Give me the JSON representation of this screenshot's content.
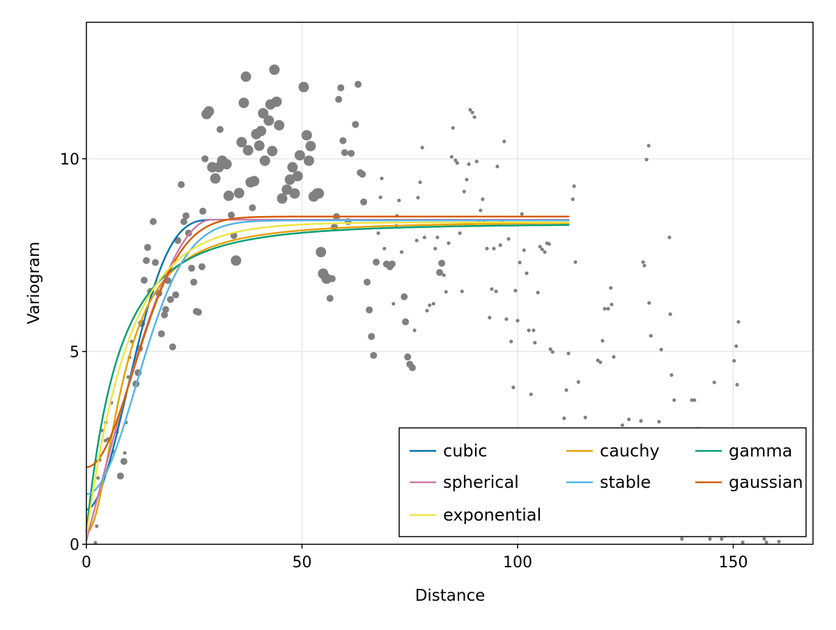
{
  "chart_data": {
    "type": "scatter",
    "title": "",
    "xlabel": "Distance",
    "ylabel": "Variogram",
    "xlim": [
      0,
      168.5
    ],
    "ylim": [
      0,
      13.54
    ],
    "xticks": [
      0,
      50,
      100,
      150
    ],
    "yticks": [
      0,
      5,
      10
    ],
    "xtick_labels": [
      "0",
      "50",
      "100",
      "150"
    ],
    "ytick_labels": [
      "0",
      "5",
      "10"
    ],
    "grid": true,
    "legend_position": "bottom-right",
    "point_color": "#808080",
    "points": [
      [
        2.1,
        0.04,
        1
      ],
      [
        2.4,
        0.47,
        1
      ],
      [
        2.7,
        1.72,
        1
      ],
      [
        3.1,
        2.19,
        1
      ],
      [
        3.7,
        2.95,
        1
      ],
      [
        4.5,
        3.16,
        1
      ],
      [
        4.4,
        2.69,
        1
      ],
      [
        5.0,
        2.73,
        1
      ],
      [
        5.8,
        3.67,
        1
      ],
      [
        6.3,
        2.4,
        1
      ],
      [
        7.1,
        2.91,
        1
      ],
      [
        7.9,
        1.77,
        2
      ],
      [
        8.7,
        2.15,
        2
      ],
      [
        8.9,
        2.37,
        1
      ],
      [
        9.2,
        3.16,
        1
      ],
      [
        9.7,
        4.34,
        1
      ],
      [
        10.5,
        5.26,
        1
      ],
      [
        10.0,
        4.85,
        1
      ],
      [
        11.5,
        4.16,
        2
      ],
      [
        12.0,
        4.45,
        2
      ],
      [
        12.3,
        5.08,
        2
      ],
      [
        12.8,
        5.73,
        2
      ],
      [
        13.4,
        6.85,
        2
      ],
      [
        13.9,
        7.36,
        2
      ],
      [
        14.2,
        7.7,
        2
      ],
      [
        14.9,
        6.56,
        2
      ],
      [
        15.5,
        8.37,
        2
      ],
      [
        16.0,
        7.31,
        2
      ],
      [
        16.8,
        6.51,
        2
      ],
      [
        17.4,
        5.46,
        2
      ],
      [
        18.1,
        5.95,
        2
      ],
      [
        18.4,
        6.09,
        2
      ],
      [
        18.9,
        6.84,
        2
      ],
      [
        19.5,
        6.35,
        2
      ],
      [
        20.0,
        5.12,
        2
      ],
      [
        20.7,
        6.47,
        2
      ],
      [
        21.2,
        7.88,
        2
      ],
      [
        22.0,
        9.33,
        2
      ],
      [
        22.6,
        8.37,
        2
      ],
      [
        23.1,
        8.52,
        2
      ],
      [
        23.7,
        8.07,
        2
      ],
      [
        24.4,
        7.16,
        2
      ],
      [
        24.9,
        6.8,
        2
      ],
      [
        25.5,
        6.04,
        2
      ],
      [
        26.0,
        6.02,
        2
      ],
      [
        26.8,
        7.2,
        2
      ],
      [
        27.0,
        8.64,
        2
      ],
      [
        27.5,
        10.0,
        2
      ],
      [
        27.9,
        11.16,
        3
      ],
      [
        28.4,
        11.23,
        3
      ],
      [
        29.2,
        9.78,
        3
      ],
      [
        29.9,
        9.49,
        3
      ],
      [
        30.7,
        9.78,
        3
      ],
      [
        31.0,
        10.76,
        2
      ],
      [
        31.5,
        9.95,
        3
      ],
      [
        32.5,
        9.86,
        3
      ],
      [
        33.0,
        9.04,
        3
      ],
      [
        33.6,
        8.54,
        2
      ],
      [
        34.2,
        8.01,
        2
      ],
      [
        34.7,
        7.36,
        3
      ],
      [
        35.4,
        9.11,
        3
      ],
      [
        36.0,
        10.43,
        3
      ],
      [
        36.5,
        11.45,
        3
      ],
      [
        37.0,
        12.13,
        3
      ],
      [
        37.5,
        10.22,
        3
      ],
      [
        38.1,
        9.39,
        3
      ],
      [
        38.9,
        9.42,
        3
      ],
      [
        38.5,
        8.73,
        2
      ],
      [
        39.4,
        10.64,
        3
      ],
      [
        40.1,
        10.34,
        3
      ],
      [
        40.5,
        10.72,
        3
      ],
      [
        41.0,
        11.18,
        3
      ],
      [
        41.4,
        9.95,
        3
      ],
      [
        42.3,
        10.99,
        3
      ],
      [
        42.7,
        11.41,
        3
      ],
      [
        43.1,
        10.2,
        3
      ],
      [
        43.6,
        12.31,
        3
      ],
      [
        44.1,
        11.48,
        3
      ],
      [
        44.7,
        10.87,
        3
      ],
      [
        45.4,
        8.97,
        3
      ],
      [
        46.5,
        9.2,
        3
      ],
      [
        47.2,
        9.46,
        3
      ],
      [
        47.8,
        9.78,
        3
      ],
      [
        48.3,
        9.1,
        3
      ],
      [
        49.0,
        9.55,
        3
      ],
      [
        49.5,
        10.09,
        3
      ],
      [
        50.4,
        11.86,
        3
      ],
      [
        51.1,
        10.61,
        3
      ],
      [
        51.6,
        9.95,
        3
      ],
      [
        52.0,
        10.33,
        3
      ],
      [
        52.7,
        9.02,
        3
      ],
      [
        53.5,
        9.1,
        3
      ],
      [
        53.9,
        9.1,
        3
      ],
      [
        54.4,
        7.58,
        3
      ],
      [
        54.9,
        7.02,
        3
      ],
      [
        55.7,
        6.89,
        3
      ],
      [
        56.5,
        6.38,
        2
      ],
      [
        57.0,
        6.89,
        2
      ],
      [
        57.5,
        8.23,
        2
      ],
      [
        58.0,
        8.5,
        2
      ],
      [
        58.5,
        11.54,
        2
      ],
      [
        59.0,
        11.84,
        2
      ],
      [
        59.5,
        10.47,
        2
      ],
      [
        59.9,
        10.16,
        2
      ],
      [
        60.7,
        8.37,
        2
      ],
      [
        61.4,
        10.14,
        2
      ],
      [
        62.4,
        10.89,
        2
      ],
      [
        63.0,
        11.93,
        2
      ],
      [
        63.5,
        9.64,
        2
      ],
      [
        64.0,
        9.6,
        2
      ],
      [
        64.3,
        8.88,
        2
      ],
      [
        65.1,
        6.8,
        2
      ],
      [
        65.6,
        6.08,
        2
      ],
      [
        66.1,
        5.39,
        2
      ],
      [
        66.6,
        4.9,
        2
      ],
      [
        67.2,
        7.32,
        2
      ],
      [
        67.7,
        8.07,
        1
      ],
      [
        68.2,
        9.0,
        1
      ],
      [
        68.5,
        9.49,
        1
      ],
      [
        69.1,
        7.67,
        1
      ],
      [
        69.6,
        7.27,
        2
      ],
      [
        70.4,
        7.2,
        2
      ],
      [
        70.9,
        7.27,
        2
      ],
      [
        71.2,
        6.24,
        1
      ],
      [
        71.9,
        8.26,
        1
      ],
      [
        72.0,
        8.52,
        1
      ],
      [
        72.5,
        8.92,
        1
      ],
      [
        73.1,
        7.58,
        1
      ],
      [
        73.7,
        6.42,
        2
      ],
      [
        74.0,
        5.77,
        2
      ],
      [
        74.5,
        4.86,
        2
      ],
      [
        75.0,
        4.67,
        2
      ],
      [
        75.6,
        4.58,
        2
      ],
      [
        76.1,
        5.55,
        1
      ],
      [
        76.6,
        7.88,
        1
      ],
      [
        76.9,
        8.99,
        1
      ],
      [
        77.4,
        9.39,
        1
      ],
      [
        77.9,
        10.29,
        1
      ],
      [
        78.4,
        7.96,
        1
      ],
      [
        79.0,
        6.06,
        1
      ],
      [
        79.6,
        6.2,
        1
      ],
      [
        80.5,
        6.24,
        1
      ],
      [
        80.9,
        7.67,
        1
      ],
      [
        81.4,
        7.96,
        1
      ],
      [
        81.9,
        7.05,
        2
      ],
      [
        82.4,
        7.29,
        2
      ],
      [
        82.9,
        6.98,
        1
      ],
      [
        83.4,
        6.55,
        1
      ],
      [
        84.0,
        7.81,
        1
      ],
      [
        84.7,
        10.05,
        1
      ],
      [
        85.0,
        10.8,
        1
      ],
      [
        85.6,
        9.96,
        1
      ],
      [
        86.0,
        9.89,
        1
      ],
      [
        86.6,
        8.07,
        1
      ],
      [
        87.1,
        6.56,
        1
      ],
      [
        87.6,
        9.15,
        1
      ],
      [
        88.2,
        9.46,
        1
      ],
      [
        88.7,
        9.86,
        1
      ],
      [
        89.0,
        11.27,
        1
      ],
      [
        89.5,
        11.2,
        1
      ],
      [
        90.0,
        11.08,
        1
      ],
      [
        90.5,
        9.93,
        1
      ],
      [
        91.1,
        8.37,
        1
      ],
      [
        91.4,
        8.66,
        1
      ],
      [
        91.9,
        8.95,
        1
      ],
      [
        92.2,
        8.39,
        1
      ],
      [
        92.9,
        7.67,
        1
      ],
      [
        93.5,
        5.88,
        1
      ],
      [
        94.0,
        6.62,
        1
      ],
      [
        94.5,
        7.67,
        1
      ],
      [
        95.0,
        6.56,
        1
      ],
      [
        95.3,
        9.8,
        1
      ],
      [
        96.0,
        7.76,
        1
      ],
      [
        96.3,
        8.39,
        1
      ],
      [
        96.9,
        10.45,
        1
      ],
      [
        97.4,
        5.84,
        1
      ],
      [
        97.9,
        7.92,
        1
      ],
      [
        98.5,
        5.26,
        1
      ],
      [
        99.0,
        4.07,
        1
      ],
      [
        99.5,
        6.58,
        1
      ],
      [
        100.0,
        5.8,
        1
      ],
      [
        100.5,
        7.31,
        1
      ],
      [
        101.0,
        8.57,
        1
      ],
      [
        101.5,
        7.63,
        1
      ],
      [
        102.1,
        7.03,
        1
      ],
      [
        102.6,
        5.55,
        1
      ],
      [
        103.1,
        3.89,
        1
      ],
      [
        103.7,
        5.55,
        1
      ],
      [
        104.0,
        5.23,
        1
      ],
      [
        104.7,
        6.53,
        1
      ],
      [
        105.2,
        7.72,
        1
      ],
      [
        105.7,
        7.65,
        1
      ],
      [
        106.3,
        7.58,
        1
      ],
      [
        106.8,
        7.81,
        1
      ],
      [
        107.3,
        7.79,
        1
      ],
      [
        107.6,
        5.06,
        1
      ],
      [
        108.1,
        4.99,
        1
      ],
      [
        110.8,
        3.27,
        1
      ],
      [
        111.3,
        4.0,
        1
      ],
      [
        111.8,
        4.95,
        1
      ],
      [
        112.8,
        8.95,
        1
      ],
      [
        113.1,
        9.29,
        1
      ],
      [
        113.4,
        7.32,
        1
      ],
      [
        114.1,
        4.21,
        1
      ],
      [
        115.7,
        3.29,
        1
      ],
      [
        118.6,
        4.77,
        1
      ],
      [
        119.2,
        4.72,
        1
      ],
      [
        119.7,
        5.28,
        1
      ],
      [
        120.2,
        6.11,
        1
      ],
      [
        121.0,
        6.11,
        1
      ],
      [
        121.6,
        6.65,
        1
      ],
      [
        121.8,
        6.22,
        1
      ],
      [
        122.3,
        4.86,
        1
      ],
      [
        124.3,
        3.09,
        1
      ],
      [
        125.8,
        3.24,
        1
      ],
      [
        128.6,
        3.2,
        1
      ],
      [
        129.1,
        7.32,
        1
      ],
      [
        129.4,
        7.23,
        1
      ],
      [
        129.9,
        9.98,
        1
      ],
      [
        130.4,
        10.34,
        1
      ],
      [
        130.5,
        6.26,
        1
      ],
      [
        130.9,
        5.41,
        1
      ],
      [
        132.8,
        3.18,
        1
      ],
      [
        133.3,
        5.05,
        1
      ],
      [
        135.2,
        7.96,
        1
      ],
      [
        135.4,
        5.97,
        1
      ],
      [
        135.7,
        4.39,
        1
      ],
      [
        136.3,
        3.74,
        1
      ],
      [
        138.1,
        0.14,
        1
      ],
      [
        140.4,
        3.74,
        1
      ],
      [
        141.0,
        3.74,
        1
      ],
      [
        141.8,
        3.0,
        1
      ],
      [
        144.6,
        0.14,
        1
      ],
      [
        145.6,
        4.2,
        1
      ],
      [
        147.3,
        0.14,
        1
      ],
      [
        148.0,
        0.22,
        1
      ],
      [
        150.2,
        4.76,
        1
      ],
      [
        150.7,
        5.14,
        1
      ],
      [
        150.9,
        4.14,
        1
      ],
      [
        151.2,
        5.77,
        1
      ],
      [
        152.2,
        0.05,
        1
      ],
      [
        157.2,
        0.14,
        1
      ],
      [
        157.7,
        0.05,
        1
      ],
      [
        160.6,
        0.07,
        1
      ]
    ],
    "model_x_range": [
      0,
      112
    ],
    "series": [
      {
        "name": "cubic",
        "color": "#0072B2",
        "model": "cubic",
        "nugget": 0.9,
        "sill": 8.42,
        "range": 31
      },
      {
        "name": "cauchy",
        "color": "#E69F00",
        "model": "cauchy",
        "nugget": 0.3,
        "sill": 8.38,
        "range": 8.7
      },
      {
        "name": "gamma",
        "color": "#009E73",
        "model": "gamma",
        "nugget": 0.3,
        "sill": 8.32,
        "range": 22.5,
        "shape": 3
      },
      {
        "name": "spherical",
        "color": "#CC79A7",
        "model": "spherical",
        "nugget": 0.1,
        "sill": 8.42,
        "range": 29
      },
      {
        "name": "stable",
        "color": "#56B4E9",
        "model": "stable",
        "nugget": 1.3,
        "sill": 8.4,
        "range": 28,
        "shape": 2
      },
      {
        "name": "gaussian",
        "color": "#D55E00",
        "model": "gaussian",
        "nugget": 2.0,
        "sill": 8.5,
        "range": 27
      },
      {
        "name": "exponential",
        "color": "#F0E442",
        "model": "exponential",
        "nugget": 0.2,
        "sill": 8.35,
        "range": 30
      }
    ]
  }
}
